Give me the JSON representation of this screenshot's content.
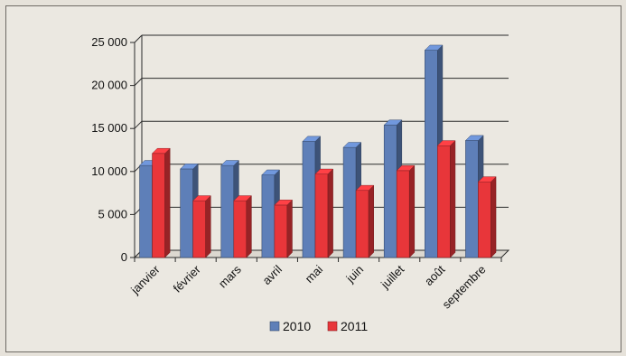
{
  "chart_data": {
    "type": "bar",
    "bar_style": "3d-clustered-column",
    "categories": [
      "janvier",
      "février",
      "mars",
      "avril",
      "mai",
      "juin",
      "juillet",
      "août",
      "septembre"
    ],
    "series": [
      {
        "name": "2010",
        "color": "#5e7fb8",
        "values": [
          10700,
          10300,
          10700,
          9600,
          13500,
          12800,
          15400,
          24100,
          13600
        ]
      },
      {
        "name": "2011",
        "color": "#e8363a",
        "values": [
          12100,
          6600,
          6600,
          6100,
          9700,
          7800,
          10100,
          13000,
          8800
        ]
      }
    ],
    "y_ticks": [
      "25 000",
      "20 000",
      "15 000",
      "10 000",
      "5 000",
      "0"
    ],
    "ylim": [
      0,
      25000
    ],
    "gridlines": true,
    "legend_position": "bottom"
  }
}
